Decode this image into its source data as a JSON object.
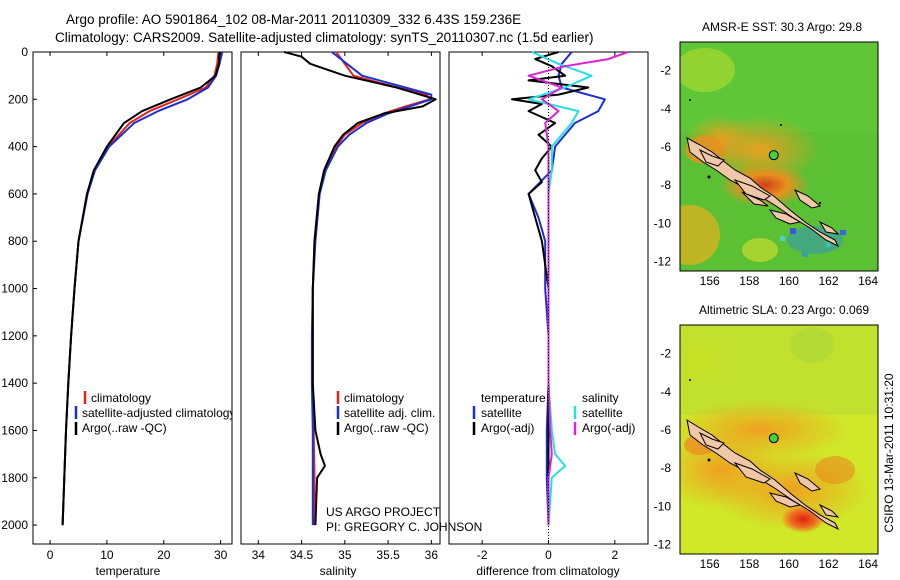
{
  "header": {
    "line1": "Argo profile: AO 5901864_102 08-Mar-2011 20110309_332 6.43S 159.236E",
    "line2": "Climatology: CARS2009. Satellite-adjusted climatology: synTS_20110307.nc (1.5d earlier)"
  },
  "credits": {
    "project": "US ARGO PROJECT",
    "pi": "PI: GREGORY C. JOHNSON",
    "stamp": "CSIRO 13-Mar-2011 10:31:20"
  },
  "colors": {
    "red": "#e8201a",
    "blue": "#1a2fd6",
    "black": "#000000",
    "cyan": "#22e0e8",
    "magenta": "#e020d8"
  },
  "chart_data": [
    {
      "type": "line",
      "id": "temperature",
      "xlabel": "temperature",
      "ylabel": "",
      "xlim": [
        -3,
        32
      ],
      "ylim": [
        0,
        2080
      ],
      "xticks": [
        0,
        10,
        20,
        30
      ],
      "yticks": [
        0,
        200,
        400,
        600,
        800,
        1000,
        1200,
        1400,
        1600,
        1800,
        2000
      ],
      "legend": [
        "climatology",
        "satellite-adjusted climatology",
        "Argo(..raw -QC)"
      ],
      "series": [
        {
          "name": "climatology",
          "color": "red",
          "depth": [
            0,
            50,
            100,
            150,
            200,
            250,
            300,
            400,
            500,
            600,
            800,
            1000,
            1200,
            1400,
            1600,
            1800,
            2000
          ],
          "values": [
            29.6,
            29.4,
            28.9,
            27.4,
            22.5,
            17.5,
            14.0,
            10.2,
            7.8,
            6.5,
            5.0,
            4.3,
            3.7,
            3.2,
            2.8,
            2.5,
            2.2
          ]
        },
        {
          "name": "satellite-adjusted climatology",
          "color": "blue",
          "depth": [
            0,
            50,
            100,
            150,
            200,
            250,
            300,
            400,
            500,
            600,
            800,
            1000,
            1200,
            1400,
            1600,
            1800,
            2000
          ],
          "values": [
            30.3,
            29.8,
            29.2,
            27.8,
            24.2,
            19.0,
            14.8,
            10.4,
            7.9,
            6.6,
            5.0,
            4.3,
            3.7,
            3.2,
            2.8,
            2.5,
            2.2
          ]
        },
        {
          "name": "Argo(..raw -QC)",
          "color": "black",
          "depth": [
            0,
            50,
            100,
            150,
            200,
            250,
            300,
            400,
            500,
            600,
            800,
            1000,
            1200,
            1400,
            1600,
            1800,
            2000
          ],
          "values": [
            29.8,
            29.7,
            29.1,
            26.5,
            21.2,
            16.2,
            13.0,
            10.0,
            7.7,
            6.5,
            5.0,
            4.3,
            3.7,
            3.2,
            2.8,
            2.5,
            2.2
          ]
        }
      ]
    },
    {
      "type": "line",
      "id": "salinity",
      "xlabel": "salinity",
      "ylabel": "",
      "xlim": [
        33.8,
        36.1
      ],
      "ylim": [
        0,
        2080
      ],
      "xticks": [
        34,
        34.5,
        35,
        35.5,
        36
      ],
      "yticks": [],
      "legend": [
        "climatology",
        "satellite adj. clim.",
        "Argo(..raw -QC)"
      ],
      "series": [
        {
          "name": "climatology",
          "color": "red",
          "depth": [
            0,
            100,
            150,
            180,
            200,
            230,
            260,
            300,
            350,
            400,
            500,
            600,
            800,
            1000,
            1200,
            1400,
            1600,
            1800,
            2000
          ],
          "values": [
            34.9,
            35.1,
            35.6,
            35.95,
            35.98,
            35.7,
            35.45,
            35.2,
            35.0,
            34.9,
            34.77,
            34.7,
            34.65,
            34.63,
            34.63,
            34.63,
            34.64,
            34.65,
            34.65
          ]
        },
        {
          "name": "satellite adj. clim.",
          "color": "blue",
          "depth": [
            0,
            100,
            150,
            180,
            200,
            230,
            260,
            300,
            350,
            400,
            500,
            600,
            800,
            1000,
            1200,
            1400,
            1600,
            1800,
            2000
          ],
          "values": [
            34.85,
            35.2,
            35.7,
            36.0,
            36.0,
            35.75,
            35.5,
            35.25,
            35.05,
            34.92,
            34.78,
            34.71,
            34.66,
            34.63,
            34.62,
            34.62,
            34.63,
            34.63,
            34.63
          ]
        },
        {
          "name": "Argo(..raw -QC)",
          "color": "black",
          "depth": [
            0,
            20,
            50,
            100,
            150,
            200,
            230,
            260,
            300,
            350,
            400,
            500,
            600,
            800,
            1000,
            1200,
            1400,
            1600,
            1700,
            1750,
            1800,
            2000
          ],
          "values": [
            34.3,
            34.5,
            34.6,
            35.0,
            35.6,
            36.05,
            35.9,
            35.45,
            35.15,
            34.98,
            34.88,
            34.76,
            34.7,
            34.65,
            34.63,
            34.63,
            34.63,
            34.66,
            34.72,
            34.77,
            34.68,
            34.66
          ]
        }
      ]
    },
    {
      "type": "line",
      "id": "difference",
      "xlabel": "difference from climatology",
      "ylabel": "",
      "xlim": [
        -3,
        3
      ],
      "ylim": [
        0,
        2080
      ],
      "xticks": [
        -2,
        0,
        2
      ],
      "yticks": [],
      "legend_titles": [
        "temperature",
        "salinity"
      ],
      "legend": [
        "satellite",
        "Argo(-adj)",
        "satellite",
        "Argo(-adj)"
      ],
      "series": [
        {
          "name": "temperature satellite",
          "color": "blue",
          "depth": [
            0,
            50,
            100,
            150,
            200,
            250,
            300,
            400,
            500,
            600,
            700,
            800,
            1000,
            1200,
            1400,
            1600,
            1800,
            2000
          ],
          "values": [
            0.7,
            0.4,
            0.3,
            0.4,
            1.7,
            1.5,
            0.8,
            0.2,
            0.1,
            -0.6,
            -0.3,
            -0.1,
            -0.1,
            0.0,
            0.0,
            -0.05,
            -0.05,
            0.0
          ]
        },
        {
          "name": "temperature Argo(-adj)",
          "color": "black",
          "depth": [
            0,
            30,
            60,
            100,
            120,
            150,
            180,
            200,
            220,
            250,
            300,
            350,
            400,
            450,
            500,
            550,
            600,
            700,
            800,
            1000,
            1200,
            1400,
            1600,
            1800,
            2000
          ],
          "values": [
            0.3,
            -0.4,
            0.1,
            0.5,
            -0.6,
            1.2,
            0.3,
            -1.1,
            -0.2,
            -0.6,
            0.2,
            -0.3,
            0.1,
            -0.2,
            -0.4,
            -0.2,
            -0.6,
            -0.4,
            -0.2,
            0.0,
            0.0,
            0.0,
            0.0,
            0.0,
            0.0
          ]
        },
        {
          "name": "salinity satellite",
          "color": "cyan",
          "depth": [
            0,
            50,
            100,
            150,
            200,
            250,
            300,
            400,
            500,
            600,
            800,
            1000,
            1200,
            1400,
            1600,
            1700,
            1750,
            1800,
            2000
          ],
          "values": [
            -0.5,
            0.3,
            1.3,
            0.5,
            -0.6,
            0.9,
            0.7,
            0.1,
            0.1,
            0.0,
            0.0,
            0.0,
            0.0,
            0.0,
            0.1,
            0.2,
            0.5,
            0.1,
            0.0
          ]
        },
        {
          "name": "salinity Argo(-adj)",
          "color": "magenta",
          "depth": [
            0,
            30,
            60,
            100,
            150,
            200,
            250,
            300,
            400,
            500,
            600,
            800,
            1000,
            1200,
            1400,
            1600,
            1700,
            1800,
            2000
          ],
          "values": [
            2.4,
            1.8,
            0.5,
            -0.6,
            0.4,
            -0.2,
            0.3,
            -0.1,
            0.0,
            0.0,
            0.0,
            0.0,
            0.0,
            0.0,
            0.0,
            0.05,
            0.1,
            0.0,
            0.0
          ]
        }
      ]
    },
    {
      "type": "heatmap",
      "id": "amsre-sst",
      "title": "AMSR-E SST: 30.3 Argo: 29.8",
      "xlim": [
        154.5,
        164.5
      ],
      "ylim": [
        -12.5,
        -0.5
      ],
      "xticks": [
        156,
        158,
        160,
        162,
        164
      ],
      "yticks": [
        -2,
        -4,
        -6,
        -8,
        -10,
        -12
      ],
      "argo_position": {
        "lon": 159.236,
        "lat": -6.43
      }
    },
    {
      "type": "heatmap",
      "id": "altimetric-sla",
      "title": "Altimetric SLA: 0.23 Argo: 0.069",
      "xlim": [
        154.5,
        164.5
      ],
      "ylim": [
        -12.5,
        -0.5
      ],
      "xticks": [
        156,
        158,
        160,
        162,
        164
      ],
      "yticks": [
        -2,
        -4,
        -6,
        -8,
        -10,
        -12
      ],
      "argo_position": {
        "lon": 159.236,
        "lat": -6.43
      }
    }
  ]
}
